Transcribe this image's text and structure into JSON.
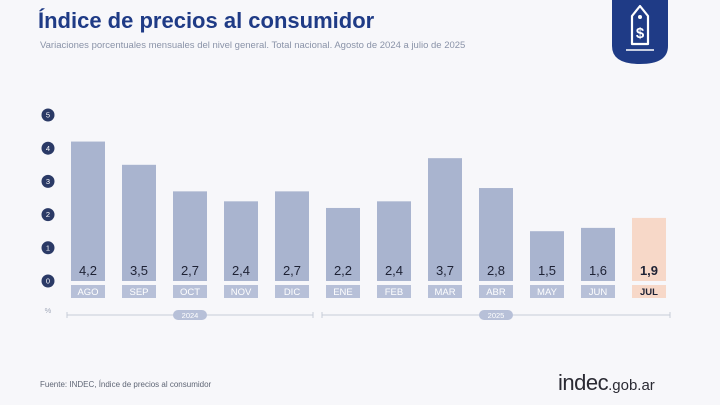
{
  "title": "Índice de precios al consumidor",
  "subtitle": "Variaciones porcentuales mensuales del nivel general. Total nacional. Agosto de 2024 a julio de 2025",
  "source": "Fuente: INDEC, Índice de precios al consumidor",
  "logo": {
    "main": "indec",
    "domain": ".gob.ar"
  },
  "badge_icon": "price-tag-dollar-icon",
  "colors": {
    "title": "#1f3b86",
    "bar": "#a9b4cf",
    "bar_highlight": "#f7d8c8",
    "label_box": "#b7c0d8",
    "label_box_highlight": "#f7d8c8",
    "year_pill": "#b7c0d8",
    "badge": "#1f3b86"
  },
  "chart_data": {
    "type": "bar",
    "categories": [
      "AGO",
      "SEP",
      "OCT",
      "NOV",
      "DIC",
      "ENE",
      "FEB",
      "MAR",
      "ABR",
      "MAY",
      "JUN",
      "JUL"
    ],
    "values": [
      4.2,
      3.5,
      2.7,
      2.4,
      2.7,
      2.2,
      2.4,
      3.7,
      2.8,
      1.5,
      1.6,
      1.9
    ],
    "value_labels": [
      "4,2",
      "3,5",
      "2,7",
      "2,4",
      "2,7",
      "2,2",
      "2,4",
      "3,7",
      "2,8",
      "1,5",
      "1,6",
      "1,9"
    ],
    "highlight": "JUL",
    "y_ticks": [
      0,
      1,
      2,
      3,
      4,
      5
    ],
    "ylim": [
      0,
      5
    ],
    "y_unit": "%",
    "groups": [
      {
        "label": "2024",
        "first": "AGO",
        "last": "DIC"
      },
      {
        "label": "2025",
        "first": "ENE",
        "last": "JUL"
      }
    ],
    "grid": false,
    "legend": "none"
  }
}
